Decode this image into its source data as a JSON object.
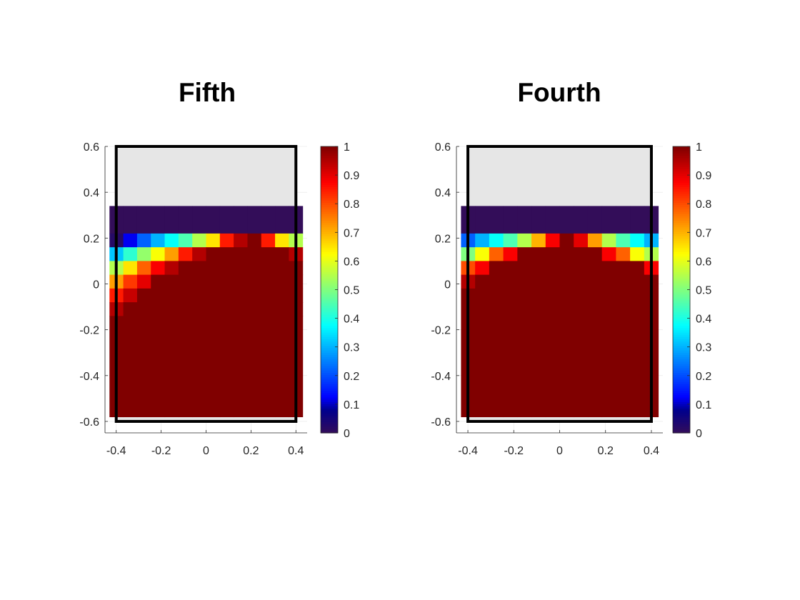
{
  "figure": {
    "colormap": "jet",
    "background": "#ffffff",
    "empty_cell_color": "#e6e6e6",
    "frame_color": "#000000"
  },
  "chart_data": [
    {
      "type": "heatmap",
      "title": "Fifth",
      "xlim": [
        -0.45,
        0.45
      ],
      "ylim": [
        -0.65,
        0.6
      ],
      "xticks": [
        -0.4,
        -0.2,
        0,
        0.2,
        0.4
      ],
      "yticks": [
        -0.6,
        -0.4,
        -0.2,
        0,
        0.2,
        0.4,
        0.6
      ],
      "x_range": [
        -0.43,
        0.43
      ],
      "y_range": [
        -0.58,
        0.34
      ],
      "columns": 14,
      "rows": [
        {
          "y": [
            0.22,
            0.34
          ],
          "values": [
            0,
            0,
            0,
            0,
            0,
            0,
            0,
            0,
            0,
            0,
            0,
            0,
            0,
            0
          ]
        },
        {
          "y": [
            0.16,
            0.22
          ],
          "values": [
            0.02,
            0.12,
            0.22,
            0.3,
            0.38,
            0.45,
            0.55,
            0.65,
            0.85,
            0.95,
            1.0,
            0.85,
            0.65,
            0.55
          ]
        },
        {
          "y": [
            0.1,
            0.16
          ],
          "values": [
            0.32,
            0.42,
            0.52,
            0.62,
            0.72,
            0.85,
            0.95,
            1,
            1,
            1,
            1,
            1,
            1,
            0.95
          ]
        },
        {
          "y": [
            0.04,
            0.1
          ],
          "values": [
            0.55,
            0.65,
            0.78,
            0.88,
            0.95,
            1,
            1,
            1,
            1,
            1,
            1,
            1,
            1,
            1
          ]
        },
        {
          "y": [
            -0.02,
            0.04
          ],
          "values": [
            0.72,
            0.82,
            0.9,
            1,
            1,
            1,
            1,
            1,
            1,
            1,
            1,
            1,
            1,
            1
          ]
        },
        {
          "y": [
            -0.08,
            -0.02
          ],
          "values": [
            0.85,
            0.93,
            1,
            1,
            1,
            1,
            1,
            1,
            1,
            1,
            1,
            1,
            1,
            1
          ]
        },
        {
          "y": [
            -0.14,
            -0.08
          ],
          "values": [
            0.95,
            1,
            1,
            1,
            1,
            1,
            1,
            1,
            1,
            1,
            1,
            1,
            1,
            1
          ]
        },
        {
          "y": [
            -0.58,
            -0.14
          ],
          "values": [
            1,
            1,
            1,
            1,
            1,
            1,
            1,
            1,
            1,
            1,
            1,
            1,
            1,
            1
          ]
        }
      ],
      "colorbar": {
        "limits": [
          0,
          1
        ],
        "ticks": [
          0,
          0.1,
          0.2,
          0.3,
          0.4,
          0.5,
          0.6,
          0.7,
          0.8,
          0.9,
          1
        ]
      }
    },
    {
      "type": "heatmap",
      "title": "Fourth",
      "xlim": [
        -0.45,
        0.45
      ],
      "ylim": [
        -0.65,
        0.6
      ],
      "xticks": [
        -0.4,
        -0.2,
        0,
        0.2,
        0.4
      ],
      "yticks": [
        -0.6,
        -0.4,
        -0.2,
        0,
        0.2,
        0.4,
        0.6
      ],
      "x_range": [
        -0.43,
        0.43
      ],
      "y_range": [
        -0.58,
        0.34
      ],
      "columns": 14,
      "rows": [
        {
          "y": [
            0.22,
            0.34
          ],
          "values": [
            0,
            0,
            0,
            0,
            0,
            0,
            0,
            0,
            0,
            0,
            0,
            0,
            0,
            0
          ]
        },
        {
          "y": [
            0.16,
            0.22
          ],
          "values": [
            0.22,
            0.3,
            0.38,
            0.45,
            0.55,
            0.7,
            0.88,
            1.0,
            0.9,
            0.72,
            0.55,
            0.45,
            0.38,
            0.3
          ]
        },
        {
          "y": [
            0.1,
            0.16
          ],
          "values": [
            0.5,
            0.62,
            0.78,
            0.88,
            1,
            1,
            1,
            1,
            1,
            1,
            0.88,
            0.78,
            0.62,
            0.55
          ]
        },
        {
          "y": [
            0.04,
            0.1
          ],
          "values": [
            0.8,
            0.88,
            1,
            1,
            1,
            1,
            1,
            1,
            1,
            1,
            1,
            1,
            1,
            0.88
          ]
        },
        {
          "y": [
            -0.02,
            0.04
          ],
          "values": [
            0.95,
            1,
            1,
            1,
            1,
            1,
            1,
            1,
            1,
            1,
            1,
            1,
            1,
            1
          ]
        },
        {
          "y": [
            -0.58,
            -0.02
          ],
          "values": [
            1,
            1,
            1,
            1,
            1,
            1,
            1,
            1,
            1,
            1,
            1,
            1,
            1,
            1
          ]
        }
      ],
      "colorbar": {
        "limits": [
          0,
          1
        ],
        "ticks": [
          0,
          0.1,
          0.2,
          0.3,
          0.4,
          0.5,
          0.6,
          0.7,
          0.8,
          0.9,
          1
        ]
      }
    }
  ]
}
